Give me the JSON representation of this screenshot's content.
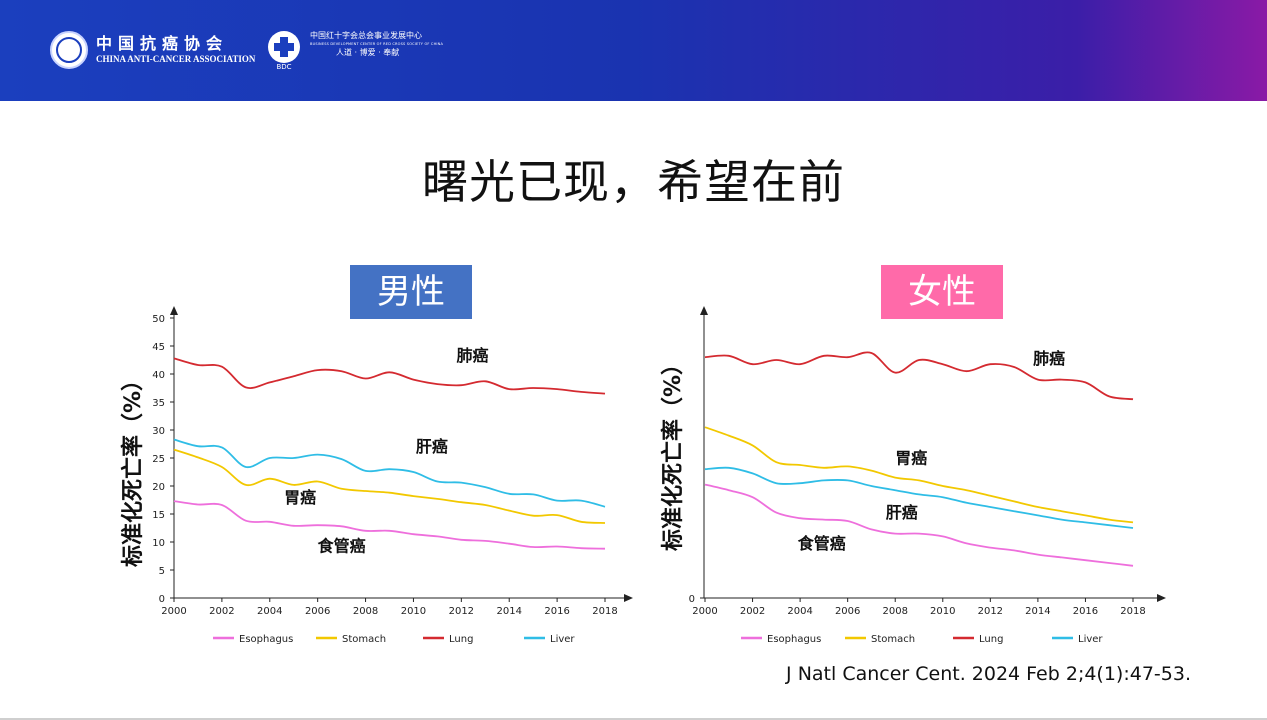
{
  "header": {
    "association_cn": "中国抗癌协会",
    "association_en": "CHINA ANTI-CANCER ASSOCIATION",
    "bdc_cn": "中国红十字会总会事业发展中心",
    "bdc_en": "BUSINESS DEVELOPMENT CENTER OF RED CROSS SOCIETY OF CHINA",
    "bdc_motto": "人道 · 博爱 · 奉献",
    "bdc_abbr": "BDC"
  },
  "slide": {
    "title": "曙光已现，希望在前",
    "citation": "J Natl Cancer Cent. 2024 Feb 2;4(1):47-53."
  },
  "colors": {
    "esophagus": "#ee6fdc",
    "stomach": "#f2c800",
    "lung": "#d42a30",
    "liver": "#2fbde6",
    "male_box": "#4472c4",
    "female_box": "#ff6aa9"
  },
  "chart_data": [
    {
      "type": "line",
      "panel": "男性",
      "ylabel": "标准化死亡率（%）",
      "xlim": [
        2000,
        2018.8
      ],
      "ylim": [
        0,
        50
      ],
      "x_ticks": [
        "2000",
        "2002",
        "2004",
        "2006",
        "2008",
        "2010",
        "2012",
        "2014",
        "2016",
        "2018"
      ],
      "y_ticks": [
        "0",
        "5",
        "10",
        "15",
        "20",
        "25",
        "30",
        "35",
        "40",
        "45",
        "50"
      ],
      "y_ticks_shown": [
        "0",
        "5",
        "10"
      ],
      "series": [
        {
          "key": "lung",
          "name": "Lung",
          "label": "肺癌",
          "label_pos": [
            2011.8,
            42.3
          ],
          "points": [
            [
              2000,
              42.8
            ],
            [
              2001,
              41.6
            ],
            [
              2002,
              41.3
            ],
            [
              2003,
              37.6
            ],
            [
              2004,
              38.5
            ],
            [
              2005,
              39.6
            ],
            [
              2006,
              40.7
            ],
            [
              2007,
              40.5
            ],
            [
              2008,
              39.2
            ],
            [
              2009,
              40.3
            ],
            [
              2010,
              39.0
            ],
            [
              2011,
              38.2
            ],
            [
              2012,
              38.0
            ],
            [
              2013,
              38.7
            ],
            [
              2014,
              37.3
            ],
            [
              2015,
              37.5
            ],
            [
              2016,
              37.3
            ],
            [
              2017,
              36.8
            ],
            [
              2018,
              36.5
            ]
          ]
        },
        {
          "key": "liver",
          "name": "Liver",
          "label": "肝癌",
          "label_pos": [
            2010.1,
            26.1
          ],
          "points": [
            [
              2000,
              28.3
            ],
            [
              2001,
              27.1
            ],
            [
              2002,
              26.9
            ],
            [
              2003,
              23.4
            ],
            [
              2004,
              25.0
            ],
            [
              2005,
              25.0
            ],
            [
              2006,
              25.6
            ],
            [
              2007,
              24.8
            ],
            [
              2008,
              22.7
            ],
            [
              2009,
              23.0
            ],
            [
              2010,
              22.5
            ],
            [
              2011,
              20.8
            ],
            [
              2012,
              20.6
            ],
            [
              2013,
              19.8
            ],
            [
              2014,
              18.6
            ],
            [
              2015,
              18.5
            ],
            [
              2016,
              17.4
            ],
            [
              2017,
              17.4
            ],
            [
              2018,
              16.3
            ]
          ]
        },
        {
          "key": "stomach",
          "name": "Stomach",
          "label": "胃癌",
          "label_pos": [
            2004.6,
            17.0
          ],
          "points": [
            [
              2000,
              26.5
            ],
            [
              2001,
              25.1
            ],
            [
              2002,
              23.4
            ],
            [
              2003,
              20.2
            ],
            [
              2004,
              21.3
            ],
            [
              2005,
              20.2
            ],
            [
              2006,
              20.8
            ],
            [
              2007,
              19.5
            ],
            [
              2008,
              19.1
            ],
            [
              2009,
              18.8
            ],
            [
              2010,
              18.2
            ],
            [
              2011,
              17.7
            ],
            [
              2012,
              17.1
            ],
            [
              2013,
              16.6
            ],
            [
              2014,
              15.6
            ],
            [
              2015,
              14.7
            ],
            [
              2016,
              14.8
            ],
            [
              2017,
              13.6
            ],
            [
              2018,
              13.4
            ]
          ]
        },
        {
          "key": "esophagus",
          "name": "Esophagus",
          "label": "食管癌",
          "label_pos": [
            2006.0,
            8.3
          ],
          "points": [
            [
              2000,
              17.3
            ],
            [
              2001,
              16.7
            ],
            [
              2002,
              16.6
            ],
            [
              2003,
              13.8
            ],
            [
              2004,
              13.6
            ],
            [
              2005,
              12.9
            ],
            [
              2006,
              13.0
            ],
            [
              2007,
              12.8
            ],
            [
              2008,
              12.0
            ],
            [
              2009,
              12.0
            ],
            [
              2010,
              11.4
            ],
            [
              2011,
              11.0
            ],
            [
              2012,
              10.4
            ],
            [
              2013,
              10.2
            ],
            [
              2014,
              9.7
            ],
            [
              2015,
              9.1
            ],
            [
              2016,
              9.2
            ],
            [
              2017,
              8.9
            ],
            [
              2018,
              8.8
            ]
          ]
        }
      ],
      "legend": [
        "Esophagus",
        "Stomach",
        "Lung",
        "Liver"
      ],
      "legend_position": "bottom"
    },
    {
      "type": "line",
      "panel": "女性",
      "ylabel": "标准化死亡率（%）",
      "xlim": [
        2000,
        2018.8
      ],
      "ylim": [
        0,
        20
      ],
      "x_ticks": [
        "2000",
        "2002",
        "2004",
        "2006",
        "2008",
        "2010",
        "2012",
        "2014",
        "2016",
        "2018"
      ],
      "y_ticks": [
        "0"
      ],
      "series": [
        {
          "key": "lung",
          "name": "Lung",
          "label": "肺癌",
          "label_pos": [
            2013.8,
            16.7
          ],
          "points": [
            [
              2000,
              17.2
            ],
            [
              2001,
              17.3
            ],
            [
              2002,
              16.7
            ],
            [
              2003,
              17.0
            ],
            [
              2004,
              16.7
            ],
            [
              2005,
              17.3
            ],
            [
              2006,
              17.2
            ],
            [
              2007,
              17.5
            ],
            [
              2008,
              16.1
            ],
            [
              2009,
              17.0
            ],
            [
              2010,
              16.7
            ],
            [
              2011,
              16.2
            ],
            [
              2012,
              16.7
            ],
            [
              2013,
              16.5
            ],
            [
              2014,
              15.6
            ],
            [
              2015,
              15.6
            ],
            [
              2016,
              15.4
            ],
            [
              2017,
              14.4
            ],
            [
              2018,
              14.2
            ]
          ]
        },
        {
          "key": "stomach",
          "name": "Stomach",
          "label": "胃癌",
          "label_pos": [
            2008.0,
            9.6
          ],
          "points": [
            [
              2000,
              12.2
            ],
            [
              2001,
              11.6
            ],
            [
              2002,
              10.9
            ],
            [
              2003,
              9.7
            ],
            [
              2004,
              9.5
            ],
            [
              2005,
              9.3
            ],
            [
              2006,
              9.4
            ],
            [
              2007,
              9.1
            ],
            [
              2008,
              8.6
            ],
            [
              2009,
              8.4
            ],
            [
              2010,
              8.0
            ],
            [
              2011,
              7.7
            ],
            [
              2012,
              7.3
            ],
            [
              2013,
              6.9
            ],
            [
              2014,
              6.5
            ],
            [
              2015,
              6.2
            ],
            [
              2016,
              5.9
            ],
            [
              2017,
              5.6
            ],
            [
              2018,
              5.4
            ]
          ]
        },
        {
          "key": "liver",
          "name": "Liver",
          "label": "肝癌",
          "label_pos": [
            2007.6,
            5.7
          ],
          "points": [
            [
              2000,
              9.2
            ],
            [
              2001,
              9.3
            ],
            [
              2002,
              8.9
            ],
            [
              2003,
              8.2
            ],
            [
              2004,
              8.2
            ],
            [
              2005,
              8.4
            ],
            [
              2006,
              8.4
            ],
            [
              2007,
              8.0
            ],
            [
              2008,
              7.7
            ],
            [
              2009,
              7.4
            ],
            [
              2010,
              7.2
            ],
            [
              2011,
              6.8
            ],
            [
              2012,
              6.5
            ],
            [
              2013,
              6.2
            ],
            [
              2014,
              5.9
            ],
            [
              2015,
              5.6
            ],
            [
              2016,
              5.4
            ],
            [
              2017,
              5.2
            ],
            [
              2018,
              5.0
            ]
          ]
        },
        {
          "key": "esophagus",
          "name": "Esophagus",
          "label": "食管癌",
          "label_pos": [
            2003.9,
            3.5
          ],
          "points": [
            [
              2000,
              8.1
            ],
            [
              2001,
              7.7
            ],
            [
              2002,
              7.2
            ],
            [
              2003,
              6.1
            ],
            [
              2004,
              5.7
            ],
            [
              2005,
              5.6
            ],
            [
              2006,
              5.5
            ],
            [
              2007,
              4.9
            ],
            [
              2008,
              4.6
            ],
            [
              2009,
              4.6
            ],
            [
              2010,
              4.4
            ],
            [
              2011,
              3.9
            ],
            [
              2012,
              3.6
            ],
            [
              2013,
              3.4
            ],
            [
              2014,
              3.1
            ],
            [
              2015,
              2.9
            ],
            [
              2016,
              2.7
            ],
            [
              2017,
              2.5
            ],
            [
              2018,
              2.3
            ]
          ]
        }
      ],
      "legend": [
        "Esophagus",
        "Stomach",
        "Lung",
        "Liver"
      ],
      "legend_position": "bottom"
    }
  ]
}
